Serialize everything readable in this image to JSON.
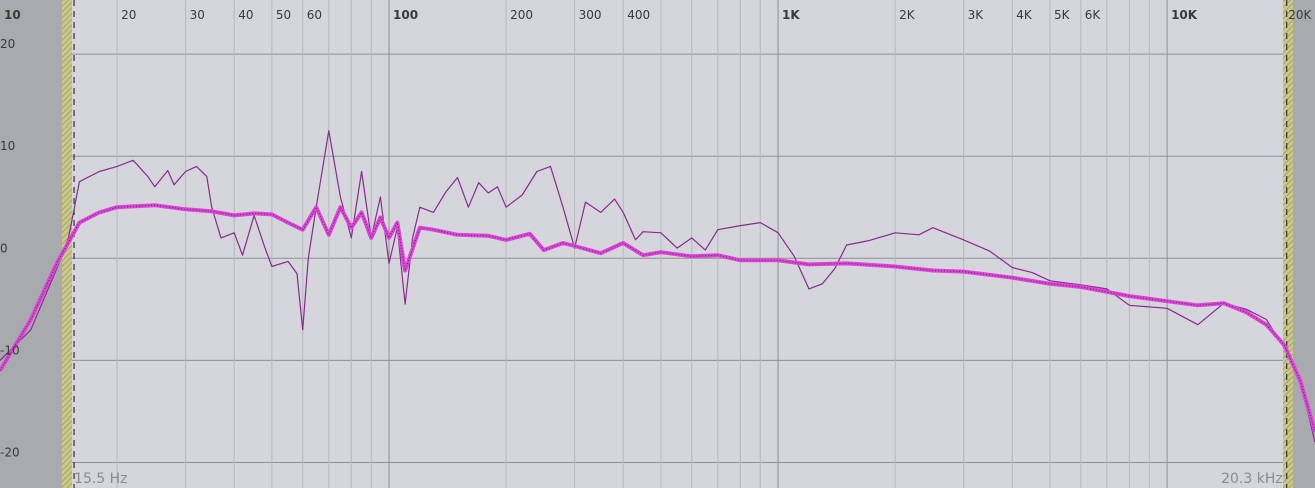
{
  "chart_data": {
    "type": "line",
    "xlim": [
      10,
      24000
    ],
    "ylim": [
      -22.5,
      25.3
    ],
    "log_x": true,
    "grid": true,
    "xticks": [
      10,
      20,
      30,
      40,
      50,
      60,
      100,
      200,
      300,
      400,
      {
        "value": 1000,
        "label": "1K"
      },
      {
        "value": 2000,
        "label": "2K"
      },
      {
        "value": 3000,
        "label": "3K"
      },
      {
        "value": 4000,
        "label": "4K"
      },
      {
        "value": 5000,
        "label": "5K"
      },
      {
        "value": 6000,
        "label": "6K"
      },
      {
        "value": 10000,
        "label": "10K"
      },
      {
        "value": 20000,
        "label": "20K"
      }
    ],
    "minor_xticks": [
      70,
      80,
      90,
      500,
      600,
      700,
      800,
      900,
      7000,
      8000,
      9000
    ],
    "yticks": [
      20,
      10,
      0,
      -10,
      -20
    ],
    "low_cut": {
      "value": 15.5,
      "label": "15.5 Hz"
    },
    "high_cut": {
      "value": 20300,
      "label": "20.3 kHz"
    },
    "series": [
      {
        "color": "#8a2a8e",
        "style": "thin",
        "x": [
          10,
          12,
          14,
          15,
          16,
          18,
          20,
          22,
          24,
          25,
          27,
          28,
          30,
          32,
          34,
          35,
          37,
          40,
          42,
          45,
          48,
          50,
          55,
          58,
          60,
          62,
          65,
          70,
          75,
          80,
          85,
          90,
          95,
          100,
          105,
          110,
          115,
          120,
          130,
          140,
          150,
          160,
          170,
          180,
          190,
          200,
          220,
          240,
          260,
          280,
          300,
          320,
          350,
          380,
          400,
          430,
          450,
          500,
          550,
          600,
          650,
          700,
          800,
          900,
          1000,
          1100,
          1200,
          1300,
          1400,
          1500,
          1700,
          2000,
          2300,
          2500,
          3000,
          3500,
          4000,
          4500,
          5000,
          6000,
          7000,
          8000,
          10000,
          12000,
          14000,
          16000,
          18000,
          20000,
          22000,
          24000
        ],
        "values": [
          -10,
          -7,
          -1,
          2,
          7.5,
          8.5,
          9,
          9.6,
          8,
          7,
          8.6,
          7.2,
          8.5,
          9,
          8,
          5,
          2,
          2.5,
          0.3,
          4.2,
          1,
          -0.8,
          -0.3,
          -1.5,
          -7,
          0,
          5,
          12.5,
          6,
          2,
          8.5,
          2,
          6,
          -0.5,
          3,
          -4.5,
          2,
          5,
          4.5,
          6.5,
          7.9,
          5,
          7.4,
          6.4,
          7,
          5,
          6.2,
          8.5,
          9,
          5,
          1,
          5.5,
          4.5,
          5.8,
          4.5,
          1.8,
          2.6,
          2.5,
          1,
          2,
          0.8,
          2.8,
          3.2,
          3.5,
          2.5,
          0.2,
          -3,
          -2.5,
          -1,
          1.3,
          1.7,
          2.5,
          2.3,
          3,
          1.8,
          0.7,
          -0.9,
          -1.4,
          -2.2,
          -2.6,
          -3,
          -4.6,
          -4.9,
          -6.5,
          -4.4,
          -5,
          -6,
          -8.8,
          -12,
          -18
        ]
      },
      {
        "color": "#dc46d6",
        "style": "thick",
        "x": [
          10,
          12,
          14,
          16,
          18,
          20,
          25,
          30,
          35,
          40,
          45,
          50,
          55,
          60,
          65,
          70,
          75,
          80,
          85,
          90,
          95,
          100,
          105,
          110,
          120,
          130,
          150,
          180,
          200,
          230,
          250,
          280,
          300,
          350,
          400,
          450,
          500,
          600,
          700,
          800,
          1000,
          1200,
          1500,
          2000,
          2500,
          3000,
          4000,
          5000,
          6000,
          8000,
          10000,
          12000,
          14000,
          16000,
          18000,
          20000,
          22000,
          24000
        ],
        "values": [
          -11,
          -6,
          -0.5,
          3.5,
          4.5,
          5,
          5.2,
          4.8,
          4.6,
          4.2,
          4.4,
          4.3,
          3.5,
          2.8,
          5,
          2.3,
          5,
          3,
          4.5,
          2,
          4,
          2,
          3.5,
          -1.2,
          3,
          2.8,
          2.3,
          2.2,
          1.8,
          2.4,
          0.8,
          1.5,
          1.2,
          0.5,
          1.5,
          0.3,
          0.6,
          0.2,
          0.3,
          -0.2,
          -0.2,
          -0.6,
          -0.5,
          -0.8,
          -1.2,
          -1.3,
          -1.9,
          -2.5,
          -2.8,
          -3.7,
          -4.2,
          -4.6,
          -4.4,
          -5.3,
          -6.5,
          -8.5,
          -12,
          -17
        ]
      }
    ]
  }
}
